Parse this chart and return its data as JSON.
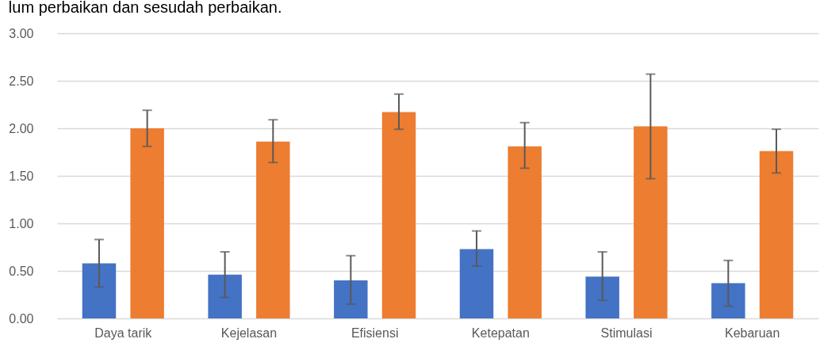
{
  "chart_data": {
    "type": "bar",
    "title": "lum perbaikan dan sesudah perbaikan.",
    "categories": [
      "Daya tarik",
      "Kejelasan",
      "Efisiensi",
      "Ketepatan",
      "Stimulasi",
      "Kebaruan"
    ],
    "series": [
      {
        "color": "#4472c4",
        "values": [
          0.58,
          0.46,
          0.4,
          0.73,
          0.44,
          0.37
        ],
        "errors": [
          [
            0.33,
            0.83
          ],
          [
            0.22,
            0.7
          ],
          [
            0.15,
            0.66
          ],
          [
            0.55,
            0.92
          ],
          [
            0.19,
            0.7
          ],
          [
            0.13,
            0.61
          ]
        ]
      },
      {
        "color": "#ed7d31",
        "values": [
          2.0,
          1.86,
          2.17,
          1.81,
          2.02,
          1.76
        ],
        "errors": [
          [
            1.81,
            2.19
          ],
          [
            1.64,
            2.09
          ],
          [
            1.99,
            2.36
          ],
          [
            1.58,
            2.06
          ],
          [
            1.47,
            2.57
          ],
          [
            1.53,
            1.99
          ]
        ]
      }
    ],
    "ylim": [
      0,
      3
    ],
    "yticks": [
      {
        "value": 0,
        "label": "0.00"
      },
      {
        "value": 0.5,
        "label": "0.50"
      },
      {
        "value": 1,
        "label": "1.00"
      },
      {
        "value": 1.5,
        "label": "1.50"
      },
      {
        "value": 2,
        "label": "2.00"
      },
      {
        "value": 2.5,
        "label": "2.50"
      },
      {
        "value": 3,
        "label": "3.00"
      }
    ],
    "grid": "y",
    "legend": false
  }
}
